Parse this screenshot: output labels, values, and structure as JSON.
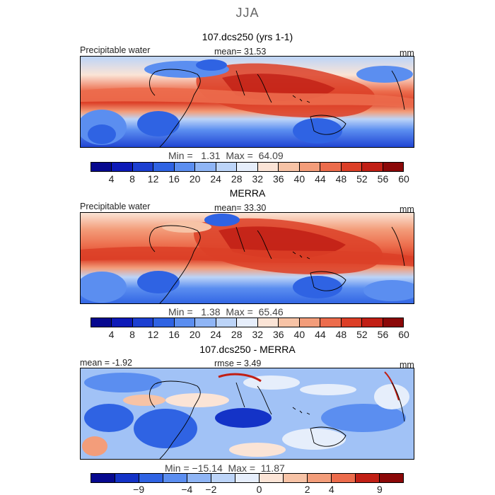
{
  "season": "JJA",
  "panels": [
    {
      "id": "model",
      "title": "107.dcs250 (yrs 1-1)",
      "left_label": "Precipitable water",
      "center_label": "mean=  31.53",
      "units": "mm",
      "stats": "Min =   1.31  Max =  64.09",
      "palette": [
        "#07098f",
        "#0d1ab8",
        "#1c3fd1",
        "#2f63e3",
        "#5b8ef0",
        "#8fb5f5",
        "#bcd4f8",
        "#e6eefb",
        "#fbe4d6",
        "#f7c3a6",
        "#f39d7a",
        "#ec6c4c",
        "#dc3f27",
        "#c11f15",
        "#8b0808"
      ],
      "ticks": [
        "4",
        "8",
        "12",
        "16",
        "20",
        "24",
        "28",
        "32",
        "36",
        "40",
        "44",
        "48",
        "52",
        "56",
        "60"
      ]
    },
    {
      "id": "obs",
      "title": "MERRA",
      "left_label": "Precipitable water",
      "center_label": "mean=  33.30",
      "units": "mm",
      "stats": "Min =   1.38  Max =  65.46",
      "palette": [
        "#07098f",
        "#0d1ab8",
        "#1c3fd1",
        "#2f63e3",
        "#5b8ef0",
        "#8fb5f5",
        "#bcd4f8",
        "#e6eefb",
        "#fbe4d6",
        "#f7c3a6",
        "#f39d7a",
        "#ec6c4c",
        "#dc3f27",
        "#c11f15",
        "#8b0808"
      ],
      "ticks": [
        "4",
        "8",
        "12",
        "16",
        "20",
        "24",
        "28",
        "32",
        "36",
        "40",
        "44",
        "48",
        "52",
        "56",
        "60"
      ]
    },
    {
      "id": "diff",
      "title": "107.dcs250 - MERRA",
      "left_label": "mean =  -1.92",
      "center_label": "rmse =   3.49",
      "units": "mm",
      "stats": "Min = −15.14  Max =  11.87",
      "palette": [
        "#07098f",
        "#1433c7",
        "#2f63e3",
        "#5b8ef0",
        "#8fb5f5",
        "#bcd4f8",
        "#e6eefb",
        "#fbe4d6",
        "#f7c3a6",
        "#f39d7a",
        "#ec6c4c",
        "#c11f15",
        "#8b0808"
      ],
      "ticks": [
        "−9",
        "−4",
        "−2",
        "0",
        "2",
        "4",
        "9"
      ]
    }
  ],
  "chart_data": [
    {
      "type": "heatmap",
      "title": "107.dcs250 (yrs 1-1)",
      "variable": "Precipitable water",
      "units": "mm",
      "mean": 31.53,
      "min": 1.31,
      "max": 64.09,
      "contour_levels": [
        4,
        8,
        12,
        16,
        20,
        24,
        28,
        32,
        36,
        40,
        44,
        48,
        52,
        56,
        60
      ],
      "legend_placement": "bottom"
    },
    {
      "type": "heatmap",
      "title": "MERRA",
      "variable": "Precipitable water",
      "units": "mm",
      "mean": 33.3,
      "min": 1.38,
      "max": 65.46,
      "contour_levels": [
        4,
        8,
        12,
        16,
        20,
        24,
        28,
        32,
        36,
        40,
        44,
        48,
        52,
        56,
        60
      ],
      "legend_placement": "bottom"
    },
    {
      "type": "heatmap",
      "title": "107.dcs250 - MERRA",
      "units": "mm",
      "mean": -1.92,
      "rmse": 3.49,
      "min": -15.14,
      "max": 11.87,
      "contour_levels": [
        -9,
        -4,
        -2,
        0,
        2,
        4,
        9
      ],
      "legend_placement": "bottom"
    }
  ]
}
